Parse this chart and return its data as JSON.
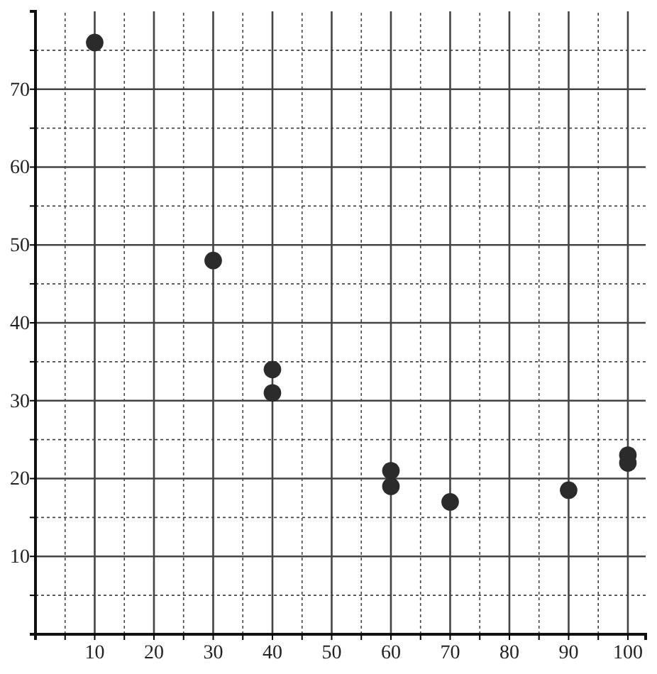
{
  "chart_data": {
    "type": "scatter",
    "x": [
      10,
      30,
      40,
      40,
      60,
      60,
      70,
      90,
      100,
      100
    ],
    "values": [
      76,
      48,
      34,
      31,
      21,
      19,
      17,
      18.5,
      23,
      22
    ],
    "color": "#2b2b2b",
    "marker": "circle",
    "grid": true,
    "xlim": [
      0,
      103
    ],
    "ylim": [
      0,
      80
    ],
    "xticks": [
      {
        "value": 5,
        "label": null
      },
      10,
      {
        "value": 15,
        "label": null
      },
      20,
      {
        "value": 25,
        "label": null
      },
      30,
      {
        "value": 35,
        "label": null
      },
      40,
      {
        "value": 45,
        "label": null
      },
      50,
      {
        "value": 55,
        "label": null
      },
      60,
      {
        "value": 65,
        "label": null
      },
      70,
      {
        "value": 75,
        "label": null
      },
      80,
      {
        "value": 85,
        "label": null
      },
      90,
      {
        "value": 95,
        "label": null
      },
      100
    ],
    "yticks": [
      {
        "value": 5,
        "label": null
      },
      10,
      {
        "value": 15,
        "label": null
      },
      20,
      {
        "value": 25,
        "label": null
      },
      30,
      {
        "value": 35,
        "label": null
      },
      40,
      {
        "value": 45,
        "label": null
      },
      50,
      {
        "value": 55,
        "label": null
      },
      60,
      {
        "value": 65,
        "label": null
      },
      70,
      {
        "value": 75,
        "label": null
      }
    ]
  }
}
